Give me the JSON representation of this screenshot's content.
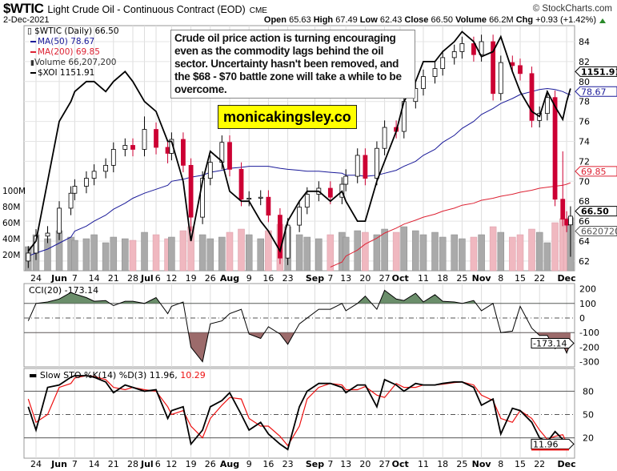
{
  "header": {
    "symbol": "$WTIC",
    "name": "Light Crude Oil - Continuous Contract (EOD)",
    "exchange": "CME",
    "brand": "© StockCharts.com",
    "date": "2-Dec-2021",
    "open_label": "Open",
    "open": "65.63",
    "high_label": "High",
    "high": "67.49",
    "low_label": "Low",
    "low": "62.43",
    "close_label": "Close",
    "close": "66.50",
    "volume_label": "Volume",
    "volume": "66.2M",
    "chg_label": "Chg",
    "chg": "+0.93 (+1.42%)"
  },
  "legend": {
    "price": "$WTIC (Daily) 66.50",
    "ma50": "MA(50) 78.67",
    "ma200": "MA(200) 69.85",
    "volume": "Volume 66,207,200",
    "xoi": "$XOI 1151.91"
  },
  "annotation": "Crude oil price action is turning encouraging even as the commodity lags behind the oil sector. Uncertainty hasn't been removed, and the $68 - $70 battle zone will take a while to be overcome.",
  "site_label": "monicakingsley.co",
  "colors": {
    "up_candle": "#ffffff",
    "down_candle": "#cc0033",
    "ma50": "#1a1a99",
    "ma200": "#dd2233",
    "xoi": "#000000",
    "volume_up": "#aaaaaa",
    "volume_down": "#f0b8c0",
    "cci_pos": "#6b8e6b",
    "cci_neg": "#9c6b6b",
    "sto_k": "#000000",
    "sto_d": "#ee1111"
  },
  "chart_data": {
    "type": "candlestick",
    "price_axis": {
      "ticks": [
        "62",
        "64",
        "66",
        "68",
        "70",
        "72",
        "74",
        "76",
        "78",
        "80",
        "82",
        "84"
      ],
      "ylim": [
        61,
        86
      ]
    },
    "volume_axis": {
      "ticks": [
        "20M",
        "40M",
        "60M",
        "80M",
        "100M"
      ]
    },
    "x_ticks": [
      {
        "label": "24",
        "date": "2021-05-24",
        "bold": false
      },
      {
        "label": "Jun",
        "date": "2021-06-01",
        "bold": true
      },
      {
        "label": "7",
        "date": "2021-06-07",
        "bold": false
      },
      {
        "label": "14",
        "date": "2021-06-14",
        "bold": false
      },
      {
        "label": "21",
        "date": "2021-06-21",
        "bold": false
      },
      {
        "label": "28",
        "date": "2021-06-28",
        "bold": false
      },
      {
        "label": "Jul",
        "date": "2021-07-01",
        "bold": true
      },
      {
        "label": "6",
        "date": "2021-07-06",
        "bold": false
      },
      {
        "label": "12",
        "date": "2021-07-12",
        "bold": false
      },
      {
        "label": "19",
        "date": "2021-07-19",
        "bold": false
      },
      {
        "label": "26",
        "date": "2021-07-26",
        "bold": false
      },
      {
        "label": "Aug",
        "date": "2021-08-02",
        "bold": true
      },
      {
        "label": "9",
        "date": "2021-08-09",
        "bold": false
      },
      {
        "label": "16",
        "date": "2021-08-16",
        "bold": false
      },
      {
        "label": "23",
        "date": "2021-08-23",
        "bold": false
      },
      {
        "label": "Sep",
        "date": "2021-09-01",
        "bold": true
      },
      {
        "label": "7",
        "date": "2021-09-07",
        "bold": false
      },
      {
        "label": "13",
        "date": "2021-09-13",
        "bold": false
      },
      {
        "label": "20",
        "date": "2021-09-20",
        "bold": false
      },
      {
        "label": "27",
        "date": "2021-09-27",
        "bold": false
      },
      {
        "label": "Oct",
        "date": "2021-10-01",
        "bold": true
      },
      {
        "label": "11",
        "date": "2021-10-11",
        "bold": false
      },
      {
        "label": "18",
        "date": "2021-10-18",
        "bold": false
      },
      {
        "label": "25",
        "date": "2021-10-25",
        "bold": false
      },
      {
        "label": "Nov",
        "date": "2021-11-01",
        "bold": true
      },
      {
        "label": "8",
        "date": "2021-11-08",
        "bold": false
      },
      {
        "label": "15",
        "date": "2021-11-15",
        "bold": false
      },
      {
        "label": "22",
        "date": "2021-11-22",
        "bold": false
      },
      {
        "label": "Dec",
        "date": "2021-12-01",
        "bold": true
      }
    ],
    "dates": [
      "2021-05-20",
      "2021-05-24",
      "2021-05-27",
      "2021-06-01",
      "2021-06-04",
      "2021-06-07",
      "2021-06-10",
      "2021-06-14",
      "2021-06-17",
      "2021-06-21",
      "2021-06-24",
      "2021-06-28",
      "2021-07-01",
      "2021-07-06",
      "2021-07-09",
      "2021-07-12",
      "2021-07-15",
      "2021-07-19",
      "2021-07-22",
      "2021-07-26",
      "2021-07-29",
      "2021-08-02",
      "2021-08-05",
      "2021-08-09",
      "2021-08-12",
      "2021-08-16",
      "2021-08-19",
      "2021-08-23",
      "2021-08-26",
      "2021-08-30",
      "2021-09-02",
      "2021-09-07",
      "2021-09-10",
      "2021-09-13",
      "2021-09-16",
      "2021-09-20",
      "2021-09-23",
      "2021-09-27",
      "2021-09-30",
      "2021-10-04",
      "2021-10-07",
      "2021-10-11",
      "2021-10-14",
      "2021-10-18",
      "2021-10-21",
      "2021-10-25",
      "2021-10-28",
      "2021-11-01",
      "2021-11-04",
      "2021-11-08",
      "2021-11-11",
      "2021-11-15",
      "2021-11-18",
      "2021-11-22",
      "2021-11-24",
      "2021-11-26",
      "2021-11-30",
      "2021-12-01",
      "2021-12-02"
    ],
    "open": [
      62.0,
      62.8,
      64.5,
      64.8,
      67.3,
      68.8,
      69.5,
      70.3,
      71.0,
      71.6,
      73.2,
      73.6,
      73.2,
      75.2,
      73.4,
      72.8,
      74.2,
      71.6,
      66.4,
      70.3,
      71.9,
      73.9,
      71.2,
      68.2,
      68.3,
      68.4,
      66.6,
      62.3,
      65.6,
      67.4,
      68.7,
      69.3,
      68.4,
      69.7,
      70.5,
      72.6,
      70.3,
      73.3,
      75.4,
      75.0,
      78.0,
      79.3,
      80.5,
      81.3,
      82.4,
      83.0,
      83.8,
      82.7,
      84.0,
      78.8,
      81.9,
      81.6,
      80.8,
      76.1,
      76.8,
      78.4,
      68.2,
      66.2,
      65.63
    ],
    "high": [
      63.5,
      65.2,
      65.5,
      68.0,
      69.5,
      70.2,
      71.0,
      71.7,
      72.3,
      73.9,
      74.3,
      74.3,
      76.5,
      75.9,
      74.1,
      74.9,
      74.9,
      72.3,
      71.0,
      72.6,
      74.6,
      74.6,
      71.9,
      69.0,
      69.1,
      69.1,
      67.3,
      66.3,
      68.1,
      69.4,
      70.0,
      70.0,
      70.4,
      71.2,
      73.3,
      73.3,
      74.0,
      76.1,
      76.1,
      78.7,
      80.0,
      81.2,
      82.0,
      83.1,
      83.7,
      84.5,
      84.5,
      84.7,
      84.7,
      82.6,
      82.6,
      82.3,
      81.5,
      77.5,
      79.1,
      79.1,
      73.0,
      67.0,
      67.49
    ],
    "low": [
      61.3,
      62.1,
      63.8,
      64.1,
      66.6,
      68.1,
      68.8,
      69.6,
      70.3,
      70.9,
      72.5,
      72.5,
      72.5,
      72.7,
      71.8,
      72.1,
      70.9,
      65.0,
      65.7,
      69.6,
      71.2,
      70.5,
      67.5,
      67.5,
      67.6,
      65.9,
      61.7,
      61.6,
      64.9,
      66.7,
      68.0,
      67.7,
      67.7,
      69.0,
      69.8,
      69.6,
      69.6,
      72.6,
      74.3,
      74.3,
      77.3,
      78.6,
      79.8,
      80.6,
      81.7,
      82.3,
      82.0,
      82.0,
      78.1,
      78.1,
      80.9,
      80.1,
      75.4,
      75.4,
      76.1,
      67.5,
      65.5,
      64.9,
      62.43
    ],
    "close": [
      62.8,
      64.5,
      64.8,
      67.3,
      68.8,
      69.5,
      70.3,
      71.0,
      71.6,
      73.2,
      73.6,
      73.2,
      75.2,
      73.4,
      72.8,
      74.2,
      71.6,
      66.4,
      70.3,
      71.9,
      73.9,
      71.2,
      68.2,
      68.3,
      68.4,
      66.6,
      62.3,
      65.6,
      67.4,
      68.7,
      69.3,
      68.4,
      69.7,
      70.5,
      72.6,
      70.3,
      73.3,
      75.4,
      75.0,
      78.0,
      79.3,
      80.5,
      81.3,
      82.4,
      83.0,
      83.8,
      82.7,
      84.0,
      78.8,
      81.9,
      81.6,
      80.8,
      76.1,
      76.8,
      78.4,
      68.2,
      66.2,
      65.6,
      66.5
    ],
    "volume_millions": [
      30,
      45,
      40,
      50,
      42,
      38,
      40,
      45,
      35,
      42,
      40,
      38,
      48,
      45,
      40,
      42,
      50,
      55,
      45,
      40,
      42,
      48,
      52,
      45,
      40,
      50,
      58,
      55,
      45,
      42,
      40,
      45,
      48,
      42,
      50,
      48,
      45,
      52,
      48,
      55,
      50,
      45,
      48,
      42,
      45,
      40,
      42,
      45,
      55,
      48,
      42,
      45,
      52,
      48,
      35,
      60,
      65,
      55,
      66.2
    ],
    "ma50": [
      62.5,
      62.8,
      63.2,
      63.8,
      64.4,
      65,
      65.5,
      66,
      66.6,
      67.2,
      67.8,
      68.3,
      68.8,
      69.2,
      69.6,
      70,
      70.2,
      70.4,
      70.6,
      70.9,
      71.1,
      71.3,
      71.4,
      71.5,
      71.5,
      71.5,
      71.3,
      71.2,
      71.1,
      71.0,
      71.0,
      70.9,
      70.8,
      70.6,
      70.6,
      70.5,
      70.6,
      70.8,
      71.1,
      71.5,
      72,
      72.6,
      73.2,
      73.9,
      74.6,
      75.3,
      76,
      76.7,
      77.3,
      77.8,
      78.3,
      78.7,
      79.0,
      79.2,
      79.3,
      79.2,
      79.0,
      78.8,
      78.67
    ],
    "ma200": [
      null,
      null,
      null,
      null,
      null,
      null,
      null,
      null,
      null,
      null,
      null,
      null,
      null,
      null,
      null,
      null,
      null,
      null,
      null,
      null,
      null,
      null,
      null,
      null,
      null,
      null,
      null,
      null,
      null,
      null,
      null,
      61.4,
      61.9,
      62.5,
      63.1,
      63.7,
      64.3,
      64.8,
      65.3,
      65.7,
      66.1,
      66.4,
      66.7,
      67.0,
      67.3,
      67.6,
      67.8,
      68.1,
      68.3,
      68.5,
      68.7,
      68.9,
      69.1,
      69.3,
      69.4,
      69.5,
      69.6,
      69.7,
      69.85
    ],
    "xoi_on_price_scale": [
      63,
      64,
      70,
      76,
      78,
      79,
      80,
      80,
      79,
      80,
      81,
      80,
      78,
      77,
      74,
      74,
      70,
      64,
      70,
      73,
      72,
      69,
      68,
      68,
      66,
      65,
      63,
      66,
      68,
      69,
      69,
      68,
      69,
      68,
      66,
      66,
      70,
      72,
      75,
      78,
      80,
      82,
      82,
      83,
      84,
      85,
      84,
      82.5,
      83,
      84.5,
      81,
      79,
      77,
      76.5,
      79,
      77.5,
      76.2,
      78,
      79.3
    ],
    "tags": {
      "xoi": "1151.91",
      "ma50": "78.67",
      "ma200": "69.85",
      "close": "66.50",
      "volume": "66207200"
    },
    "cci": {
      "label": "CCI(20) -173.14",
      "ticks": [
        "200",
        "100",
        "0",
        "-100",
        "-200",
        "-300"
      ],
      "tag": "-173.14",
      "values": [
        -20,
        100,
        110,
        130,
        175,
        165,
        140,
        115,
        120,
        85,
        115,
        115,
        100,
        140,
        30,
        80,
        110,
        -200,
        -300,
        -40,
        -20,
        30,
        60,
        -110,
        -140,
        -60,
        -110,
        -180,
        -40,
        0,
        60,
        60,
        100,
        50,
        100,
        150,
        60,
        190,
        130,
        120,
        170,
        110,
        160,
        115,
        110,
        100,
        120,
        50,
        100,
        -100,
        -90,
        80,
        -70,
        -120,
        -120,
        -210,
        -180,
        -240,
        -173.14
      ]
    },
    "sto": {
      "label_main": "Slow STO %K(14) %D(3) 11.96,",
      "label_d": "10.29",
      "ticks": [
        "80",
        "50",
        "20"
      ],
      "tag": "11.96",
      "k": [
        60,
        30,
        85,
        88,
        98,
        100,
        100,
        98,
        92,
        78,
        88,
        85,
        80,
        82,
        45,
        55,
        60,
        12,
        30,
        60,
        68,
        78,
        50,
        30,
        40,
        25,
        12,
        5,
        60,
        80,
        90,
        90,
        85,
        78,
        88,
        88,
        60,
        95,
        88,
        80,
        90,
        88,
        88,
        90,
        92,
        92,
        85,
        62,
        70,
        25,
        58,
        55,
        40,
        20,
        15,
        28,
        18,
        10,
        11.96
      ],
      "d": [
        70,
        40,
        50,
        85,
        90,
        97,
        100,
        99,
        95,
        85,
        82,
        85,
        82,
        80,
        60,
        50,
        55,
        35,
        20,
        45,
        62,
        72,
        70,
        45,
        35,
        35,
        22,
        10,
        35,
        70,
        85,
        90,
        88,
        82,
        82,
        86,
        75,
        72,
        90,
        85,
        85,
        88,
        88,
        89,
        91,
        92,
        88,
        75,
        68,
        45,
        40,
        55,
        45,
        30,
        18,
        22,
        24,
        14,
        10.29
      ]
    }
  }
}
